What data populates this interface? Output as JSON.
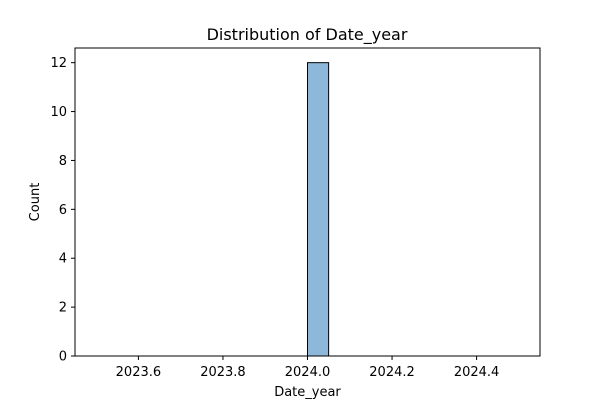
{
  "chart_data": {
    "type": "bar",
    "title": "Distribution of Date_year",
    "xlabel": "Date_year",
    "ylabel": "Count",
    "xlim": [
      2023.45,
      2024.55
    ],
    "ylim": [
      0,
      12.6
    ],
    "xticks": [
      2023.6,
      2023.8,
      2024.0,
      2024.2,
      2024.4
    ],
    "xtick_labels": [
      "2023.6",
      "2023.8",
      "2024.0",
      "2024.2",
      "2024.4"
    ],
    "yticks": [
      0,
      2,
      4,
      6,
      8,
      10,
      12
    ],
    "ytick_labels": [
      "0",
      "2",
      "4",
      "6",
      "8",
      "10",
      "12"
    ],
    "bins": [
      {
        "x0": 2023.5,
        "x1": 2023.55,
        "value": 0
      },
      {
        "x0": 2023.55,
        "x1": 2023.6,
        "value": 0
      },
      {
        "x0": 2023.6,
        "x1": 2023.65,
        "value": 0
      },
      {
        "x0": 2023.65,
        "x1": 2023.7,
        "value": 0
      },
      {
        "x0": 2023.7,
        "x1": 2023.75,
        "value": 0
      },
      {
        "x0": 2023.75,
        "x1": 2023.8,
        "value": 0
      },
      {
        "x0": 2023.8,
        "x1": 2023.85,
        "value": 0
      },
      {
        "x0": 2023.85,
        "x1": 2023.9,
        "value": 0
      },
      {
        "x0": 2023.9,
        "x1": 2023.95,
        "value": 0
      },
      {
        "x0": 2023.95,
        "x1": 2024.0,
        "value": 0
      },
      {
        "x0": 2024.0,
        "x1": 2024.05,
        "value": 12
      },
      {
        "x0": 2024.05,
        "x1": 2024.1,
        "value": 0
      },
      {
        "x0": 2024.1,
        "x1": 2024.15,
        "value": 0
      },
      {
        "x0": 2024.15,
        "x1": 2024.2,
        "value": 0
      },
      {
        "x0": 2024.2,
        "x1": 2024.25,
        "value": 0
      },
      {
        "x0": 2024.25,
        "x1": 2024.3,
        "value": 0
      },
      {
        "x0": 2024.3,
        "x1": 2024.35,
        "value": 0
      },
      {
        "x0": 2024.35,
        "x1": 2024.4,
        "value": 0
      },
      {
        "x0": 2024.4,
        "x1": 2024.45,
        "value": 0
      },
      {
        "x0": 2024.45,
        "x1": 2024.5,
        "value": 0
      }
    ],
    "bar_color": "#8db8d9",
    "bar_edge_color": "#000000",
    "grid": false,
    "legend": "none"
  }
}
